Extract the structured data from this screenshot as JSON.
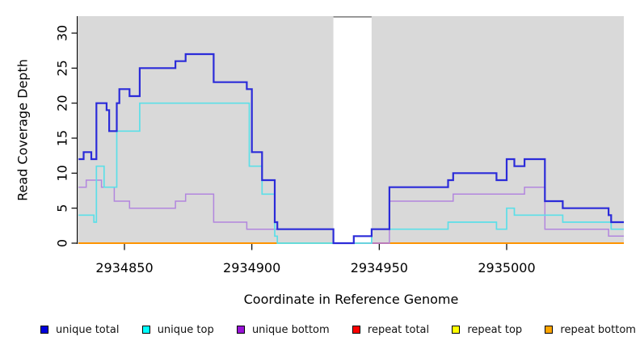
{
  "chart_data": {
    "type": "line",
    "subtype": "step-coverage",
    "title": "",
    "xlabel": "Coordinate in Reference Genome",
    "ylabel": "Read Coverage Depth",
    "xlim": [
      2934832,
      2935046
    ],
    "ylim": [
      0,
      32.5
    ],
    "x_ticks": [
      2934850,
      2934900,
      2934950,
      2935000
    ],
    "y_ticks": [
      0,
      5,
      10,
      15,
      20,
      25,
      30
    ],
    "grid": false,
    "legend_position": "bottom",
    "plot_bg_color": "#d9d9d9",
    "no_data_region": {
      "start": 2934932,
      "end": 2934947,
      "fill": "#ffffff",
      "top_line_color": "#8c8c8c"
    },
    "series": [
      {
        "name": "repeat total",
        "color": "#ff0000",
        "legend_color": "#ff0000",
        "line_width": 1.5,
        "points": [
          [
            2934832,
            0
          ],
          [
            2935046,
            0
          ]
        ]
      },
      {
        "name": "repeat top",
        "color": "#ffff00",
        "legend_color": "#ffff00",
        "line_width": 1.5,
        "points": [
          [
            2934832,
            0
          ],
          [
            2935046,
            0
          ]
        ]
      },
      {
        "name": "repeat bottom",
        "color": "#ff9400",
        "legend_color": "#ffa500",
        "line_width": 1.9,
        "points": [
          [
            2934832,
            0
          ],
          [
            2935046,
            0
          ]
        ]
      },
      {
        "name": "unique bottom",
        "color": "#b286de",
        "legend_color": "#9913d8",
        "line_width": 1.5,
        "points": [
          [
            2934832,
            8
          ],
          [
            2934835,
            9
          ],
          [
            2934841,
            8
          ],
          [
            2934846,
            6
          ],
          [
            2934852,
            5
          ],
          [
            2934870,
            6
          ],
          [
            2934874,
            7
          ],
          [
            2934885,
            3
          ],
          [
            2934898,
            2
          ],
          [
            2934932,
            0
          ],
          [
            2934954,
            6
          ],
          [
            2934979,
            7
          ],
          [
            2935007,
            8
          ],
          [
            2935015,
            2
          ],
          [
            2935040,
            1
          ],
          [
            2935046,
            1
          ]
        ]
      },
      {
        "name": "unique top",
        "color": "#5cdfe8",
        "legend_color": "#00ffff",
        "line_width": 1.7,
        "points": [
          [
            2934832,
            4
          ],
          [
            2934838,
            3
          ],
          [
            2934839,
            11
          ],
          [
            2934842,
            8
          ],
          [
            2934847,
            16
          ],
          [
            2934856,
            20
          ],
          [
            2934899,
            11
          ],
          [
            2934904,
            7
          ],
          [
            2934909,
            1
          ],
          [
            2934910,
            0
          ],
          [
            2934947,
            2
          ],
          [
            2934977,
            3
          ],
          [
            2934996,
            2
          ],
          [
            2935000,
            5
          ],
          [
            2935003,
            4
          ],
          [
            2935022,
            3
          ],
          [
            2935041,
            2
          ],
          [
            2935046,
            2
          ]
        ]
      },
      {
        "name": "unique total",
        "color": "#2b2bd9",
        "legend_color": "#0000dd",
        "line_width": 2.2,
        "points": [
          [
            2934832,
            12
          ],
          [
            2934834,
            13
          ],
          [
            2934837,
            12
          ],
          [
            2934839,
            20
          ],
          [
            2934843,
            19
          ],
          [
            2934844,
            16
          ],
          [
            2934847,
            20
          ],
          [
            2934848,
            22
          ],
          [
            2934852,
            21
          ],
          [
            2934856,
            25
          ],
          [
            2934870,
            26
          ],
          [
            2934874,
            27
          ],
          [
            2934885,
            23
          ],
          [
            2934898,
            22
          ],
          [
            2934900,
            13
          ],
          [
            2934904,
            9
          ],
          [
            2934909,
            3
          ],
          [
            2934910,
            2
          ],
          [
            2934932,
            0
          ],
          [
            2934940,
            1
          ],
          [
            2934947,
            2
          ],
          [
            2934954,
            8
          ],
          [
            2934977,
            9
          ],
          [
            2934979,
            10
          ],
          [
            2934996,
            9
          ],
          [
            2935000,
            12
          ],
          [
            2935003,
            11
          ],
          [
            2935007,
            12
          ],
          [
            2935015,
            6
          ],
          [
            2935022,
            5
          ],
          [
            2935040,
            4
          ],
          [
            2935041,
            3
          ],
          [
            2935046,
            3
          ]
        ]
      }
    ],
    "zero_line_segments": [
      {
        "start": 2934832,
        "end": 2934910,
        "color": "#ff9400"
      },
      {
        "start": 2934910,
        "end": 2934932,
        "color": "#8ccc8c"
      },
      {
        "start": 2934932,
        "end": 2934954,
        "color": "#c84868"
      },
      {
        "start": 2934954,
        "end": 2935046,
        "color": "#ff9400"
      }
    ],
    "legend_order": [
      "unique total",
      "unique top",
      "unique bottom",
      "repeat total",
      "repeat top",
      "repeat bottom"
    ]
  }
}
